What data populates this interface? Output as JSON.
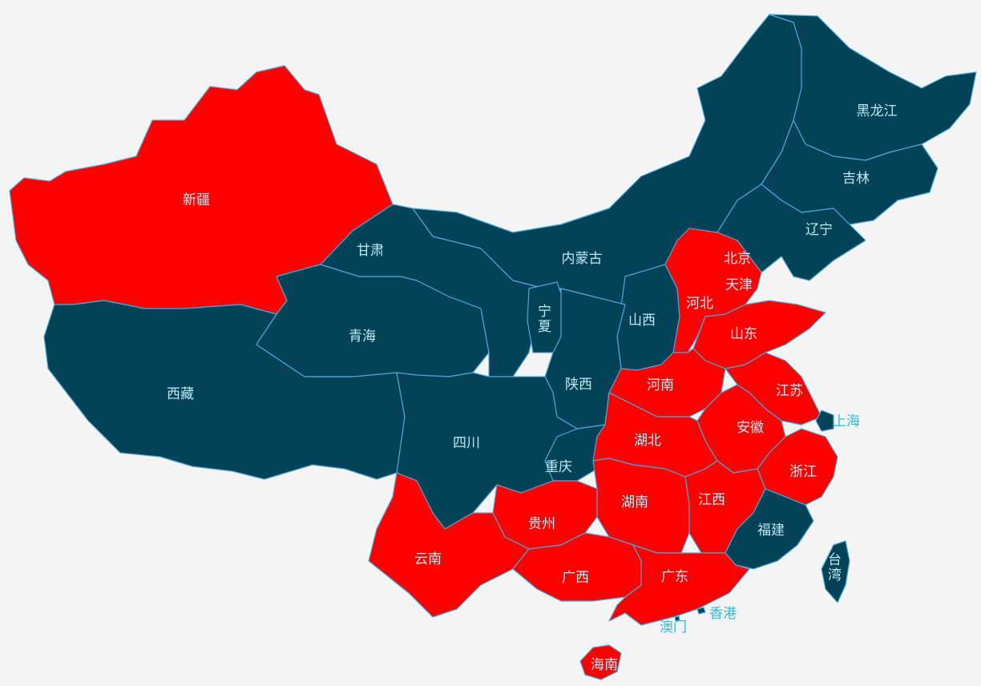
{
  "colors": {
    "background": "#f4f4f4",
    "highlighted": "#ff0000",
    "default": "#034257",
    "special": "#4ee0c8",
    "border": "#4aa8d8",
    "label": "#bfe9f5",
    "label_outside": "#2fb8d8"
  },
  "regions": [
    {
      "key": "xinjiang",
      "name": "新疆",
      "status": "highlighted"
    },
    {
      "key": "xizang",
      "name": "西藏",
      "status": "default"
    },
    {
      "key": "qinghai",
      "name": "青海",
      "status": "default"
    },
    {
      "key": "gansu",
      "name": "甘肃",
      "status": "default"
    },
    {
      "key": "neimenggu",
      "name": "内蒙古",
      "status": "default"
    },
    {
      "key": "ningxia",
      "name": "宁夏",
      "status": "default"
    },
    {
      "key": "shanxi",
      "name": "山西",
      "status": "default"
    },
    {
      "key": "shaanxi",
      "name": "陕西",
      "status": "default"
    },
    {
      "key": "sichuan",
      "name": "四川",
      "status": "default"
    },
    {
      "key": "chongqing",
      "name": "重庆",
      "status": "default"
    },
    {
      "key": "heilongjiang",
      "name": "黑龙江",
      "status": "default"
    },
    {
      "key": "jilin",
      "name": "吉林",
      "status": "default"
    },
    {
      "key": "liaoning",
      "name": "辽宁",
      "status": "default"
    },
    {
      "key": "beijing",
      "name": "北京",
      "status": "special"
    },
    {
      "key": "tianjin",
      "name": "天津",
      "status": "highlighted"
    },
    {
      "key": "hebei",
      "name": "河北",
      "status": "highlighted"
    },
    {
      "key": "shandong",
      "name": "山东",
      "status": "highlighted"
    },
    {
      "key": "henan",
      "name": "河南",
      "status": "highlighted"
    },
    {
      "key": "jiangsu",
      "name": "江苏",
      "status": "highlighted"
    },
    {
      "key": "shanghai",
      "name": "上海",
      "status": "default"
    },
    {
      "key": "anhui",
      "name": "安徽",
      "status": "highlighted"
    },
    {
      "key": "hubei",
      "name": "湖北",
      "status": "highlighted"
    },
    {
      "key": "zhejiang",
      "name": "浙江",
      "status": "highlighted"
    },
    {
      "key": "jiangxi",
      "name": "江西",
      "status": "highlighted"
    },
    {
      "key": "hunan",
      "name": "湖南",
      "status": "highlighted"
    },
    {
      "key": "fujian",
      "name": "福建",
      "status": "default"
    },
    {
      "key": "guizhou",
      "name": "贵州",
      "status": "highlighted"
    },
    {
      "key": "yunnan",
      "name": "云南",
      "status": "highlighted"
    },
    {
      "key": "guangxi",
      "name": "广西",
      "status": "highlighted"
    },
    {
      "key": "guangdong",
      "name": "广东",
      "status": "highlighted"
    },
    {
      "key": "hainan",
      "name": "海南",
      "status": "highlighted"
    },
    {
      "key": "taiwan",
      "name": "台湾",
      "status": "default"
    },
    {
      "key": "xianggang",
      "name": "香港",
      "status": "default"
    },
    {
      "key": "aomen",
      "name": "澳门",
      "status": "default"
    }
  ]
}
